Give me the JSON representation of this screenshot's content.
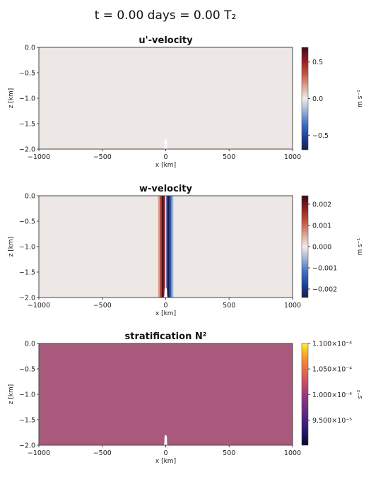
{
  "figure": {
    "title": "t = 0.00 days = 0.00 T₂"
  },
  "colors": {
    "background_pink": "#ede8e6",
    "stratification_fill": "#a95a7c",
    "bump": "#ffffff",
    "axis": "#444444"
  },
  "chart_data": [
    {
      "type": "heatmap",
      "title": "u'-velocity",
      "xlabel": "x [km]",
      "ylabel": "z [km]",
      "xlim": [
        -1000,
        1000
      ],
      "ylim": [
        -2.0,
        0.0
      ],
      "xticks": [
        "−1000",
        "−500",
        "0",
        "500",
        "1000"
      ],
      "yticks": [
        "0.0",
        "−0.5",
        "−1.0",
        "−1.5",
        "−2.0"
      ],
      "colorbar": {
        "label": "m s⁻¹",
        "colormap": "balance",
        "range": [
          -0.7,
          0.7
        ],
        "ticks": [
          "0.5",
          "0.0",
          "−0.5"
        ],
        "tick_values": [
          0.5,
          0.0,
          -0.5
        ]
      },
      "field_description_value": 0.0,
      "bump": {
        "center_km": 0,
        "half_width_km": 10,
        "height_km": 0.2
      }
    },
    {
      "type": "heatmap",
      "title": "w-velocity",
      "xlabel": "x [km]",
      "ylabel": "z [km]",
      "xlim": [
        -1000,
        1000
      ],
      "ylim": [
        -2.0,
        0.0
      ],
      "xticks": [
        "−1000",
        "−500",
        "0",
        "500",
        "1000"
      ],
      "yticks": [
        "0.0",
        "−0.5",
        "−1.0",
        "−1.5",
        "−2.0"
      ],
      "colorbar": {
        "label": "m s⁻¹",
        "colormap": "balance",
        "range": [
          -0.0024,
          0.0024
        ],
        "ticks": [
          "0.002",
          "0.001",
          "0.000",
          "−0.001",
          "−0.002"
        ],
        "tick_values": [
          0.002,
          0.001,
          0.0,
          -0.001,
          -0.002
        ]
      },
      "bands": [
        {
          "x0": -60,
          "x1": -45,
          "value": 0.0006
        },
        {
          "x0": -45,
          "x1": -30,
          "value": 0.0015
        },
        {
          "x0": -30,
          "x1": -15,
          "value": 0.0024
        },
        {
          "x0": -15,
          "x1": -5,
          "value": 0.0018
        },
        {
          "x0": -5,
          "x1": 5,
          "value": 0.0
        },
        {
          "x0": 5,
          "x1": 15,
          "value": -0.0018
        },
        {
          "x0": 15,
          "x1": 30,
          "value": -0.0024
        },
        {
          "x0": 30,
          "x1": 45,
          "value": -0.0015
        },
        {
          "x0": 45,
          "x1": 60,
          "value": -0.0006
        }
      ],
      "bump": {
        "center_km": 0,
        "half_width_km": 10,
        "height_km": 0.2
      }
    },
    {
      "type": "heatmap",
      "title": "stratification N²",
      "xlabel": "x [km]",
      "ylabel": "z [km]",
      "xlim": [
        -1000,
        1000
      ],
      "ylim": [
        -2.0,
        0.0
      ],
      "xticks": [
        "−1000",
        "−500",
        "0",
        "500",
        "1000"
      ],
      "yticks": [
        "0.0",
        "−0.5",
        "−1.0",
        "−1.5",
        "−2.0"
      ],
      "colorbar": {
        "label": "s⁻²",
        "colormap": "thermal",
        "range": [
          9.01e-05,
          0.00011
        ],
        "ticks": [
          "1.100×10⁻⁴",
          "1.050×10⁻⁴",
          "1.000×10⁻⁴",
          "9.500×10⁻⁵"
        ],
        "tick_values": [
          0.00011,
          0.000105,
          0.0001,
          9.5e-05
        ]
      },
      "field_value": 0.0001,
      "bump": {
        "center_km": 0,
        "half_width_km": 10,
        "height_km": 0.2
      }
    }
  ]
}
